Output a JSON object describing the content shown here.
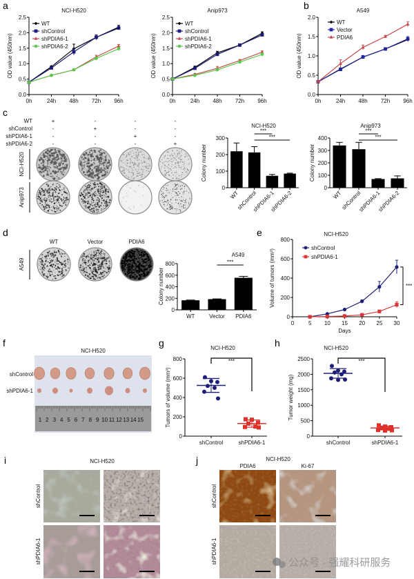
{
  "panel_labels": {
    "a": "a",
    "b": "b",
    "c": "c",
    "d": "d",
    "e": "e",
    "f": "f",
    "g": "g",
    "h": "h",
    "i": "i",
    "j": "j"
  },
  "chart_data": [
    {
      "id": "a-nci-h520",
      "type": "line",
      "title": "NCI-H520",
      "ylabel": "OD value (450nm)",
      "xlabel": "",
      "x": [
        0,
        24,
        48,
        72,
        96
      ],
      "xlim": [
        0,
        96
      ],
      "xticks": [
        0,
        24,
        48,
        72,
        96
      ],
      "xtick_labels": [
        "0h",
        "24h",
        "48h",
        "72h",
        "96h"
      ],
      "ylim": [
        0,
        2.5
      ],
      "yticks": [
        0,
        0.5,
        1,
        1.5,
        2,
        2.5
      ],
      "ytick_labels": [
        "0.0",
        "0.5",
        "1.0",
        "1.5",
        "2.0",
        "2.5"
      ],
      "legend": "top-left",
      "series": [
        {
          "name": "WT",
          "color": "#000000",
          "marker": "diamond",
          "values": [
            0.4,
            0.9,
            1.48,
            1.85,
            2.18
          ],
          "errors": [
            0.02,
            0.03,
            0.15,
            0.05,
            0.06
          ]
        },
        {
          "name": "shControl",
          "color": "#1c1c78",
          "marker": "square",
          "values": [
            0.4,
            0.86,
            1.38,
            1.85,
            2.15
          ],
          "errors": [
            0.02,
            0.03,
            0.1,
            0.08,
            0.05
          ]
        },
        {
          "name": "shPDIA6-1",
          "color": "#c0504d",
          "marker": "triangle",
          "values": [
            0.4,
            0.62,
            0.8,
            1.22,
            1.57
          ],
          "errors": [
            0.02,
            0.03,
            0.03,
            0.05,
            0.05
          ]
        },
        {
          "name": "shPDIA6-2",
          "color": "#5cc84a",
          "marker": "star",
          "values": [
            0.4,
            0.62,
            0.8,
            1.17,
            1.48
          ],
          "errors": [
            0.02,
            0.03,
            0.03,
            0.04,
            0.04
          ]
        }
      ]
    },
    {
      "id": "a-anip973",
      "type": "line",
      "title": "Anip973",
      "ylabel": "OD value (450nm)",
      "xlabel": "",
      "x": [
        0,
        24,
        48,
        72,
        96
      ],
      "xlim": [
        0,
        96
      ],
      "xticks": [
        0,
        24,
        48,
        72,
        96
      ],
      "xtick_labels": [
        "0h",
        "24h",
        "48h",
        "72h",
        "96h"
      ],
      "ylim": [
        0,
        2.5
      ],
      "yticks": [
        0,
        0.5,
        1,
        1.5,
        2,
        2.5
      ],
      "ytick_labels": [
        "0.0",
        "0.5",
        "1.0",
        "1.5",
        "2.0",
        "2.5"
      ],
      "legend": "top-left",
      "series": [
        {
          "name": "WT",
          "color": "#000000",
          "marker": "diamond",
          "values": [
            0.5,
            0.88,
            1.35,
            1.6,
            1.98
          ],
          "errors": [
            0.02,
            0.04,
            0.05,
            0.03,
            0.05
          ]
        },
        {
          "name": "shControl",
          "color": "#1c1c78",
          "marker": "square",
          "values": [
            0.5,
            0.85,
            1.3,
            1.6,
            1.93
          ],
          "errors": [
            0.02,
            0.03,
            0.04,
            0.03,
            0.04
          ]
        },
        {
          "name": "shPDIA6-1",
          "color": "#c0504d",
          "marker": "triangle",
          "values": [
            0.5,
            0.65,
            0.85,
            1.1,
            1.37
          ],
          "errors": [
            0.02,
            0.03,
            0.06,
            0.03,
            0.04
          ]
        },
        {
          "name": "shPDIA6-2",
          "color": "#5cc84a",
          "marker": "star",
          "values": [
            0.5,
            0.62,
            0.8,
            1.05,
            1.3
          ],
          "errors": [
            0.02,
            0.03,
            0.04,
            0.03,
            0.04
          ]
        }
      ]
    },
    {
      "id": "b-a549",
      "type": "line",
      "title": "A549",
      "ylabel": "OD value (450nm)",
      "xlabel": "",
      "x": [
        0,
        24,
        48,
        72,
        96
      ],
      "xlim": [
        0,
        96
      ],
      "xticks": [
        0,
        24,
        48,
        72,
        96
      ],
      "xtick_labels": [
        "0h",
        "24h",
        "48h",
        "72h",
        "96h"
      ],
      "ylim": [
        0,
        2
      ],
      "yticks": [
        0,
        0.5,
        1,
        1.5,
        2
      ],
      "ytick_labels": [
        "0.0",
        "0.5",
        "1.0",
        "1.5",
        "2.0"
      ],
      "legend": "top-left",
      "series": [
        {
          "name": "WT",
          "color": "#000000",
          "marker": "diamond",
          "values": [
            0.33,
            0.66,
            0.97,
            1.18,
            1.42
          ],
          "errors": [
            0.03,
            0.03,
            0.04,
            0.03,
            0.05
          ]
        },
        {
          "name": "Vector",
          "color": "#23239a",
          "marker": "square",
          "values": [
            0.33,
            0.65,
            0.97,
            1.18,
            1.44
          ],
          "errors": [
            0.03,
            0.03,
            0.04,
            0.03,
            0.06
          ]
        },
        {
          "name": "PDIA6",
          "color": "#c8474a",
          "marker": "triangle",
          "values": [
            0.33,
            0.8,
            1.22,
            1.5,
            1.82
          ],
          "errors": [
            0.03,
            0.1,
            0.06,
            0.03,
            0.06
          ]
        }
      ]
    },
    {
      "id": "c-nci-h520-colony",
      "type": "bar",
      "title": "NCI-H520",
      "ylabel": "Colony number",
      "xlabel": "",
      "categories": [
        "WT",
        "shControl",
        "shPDIA6-1",
        "shPDIA6-2"
      ],
      "values": [
        220,
        213,
        72,
        85
      ],
      "errors": [
        50,
        35,
        8,
        3
      ],
      "ylim": [
        0,
        300
      ],
      "yticks": [
        0,
        100,
        200,
        300
      ],
      "ytick_labels": [
        "0",
        "100",
        "200",
        "300"
      ],
      "comparisons": [
        {
          "from": 1,
          "to": 2,
          "label": "***"
        },
        {
          "from": 1,
          "to": 3,
          "label": "***"
        }
      ]
    },
    {
      "id": "c-anip973-colony",
      "type": "bar",
      "title": "Anip973",
      "ylabel": "Colony number",
      "xlabel": "",
      "categories": [
        "WT",
        "shControl",
        "shPDIA6-1",
        "shPDIA6-2"
      ],
      "values": [
        340,
        310,
        70,
        75
      ],
      "errors": [
        25,
        55,
        3,
        20
      ],
      "ylim": [
        0,
        400
      ],
      "yticks": [
        0,
        100,
        200,
        300,
        400
      ],
      "ytick_labels": [
        "0",
        "100",
        "200",
        "300",
        "400"
      ],
      "comparisons": [
        {
          "from": 1,
          "to": 2,
          "label": "***"
        },
        {
          "from": 1,
          "to": 3,
          "label": "***"
        }
      ]
    },
    {
      "id": "d-a549-colony",
      "type": "bar",
      "title": "A549",
      "ylabel": "Colony number",
      "xlabel": "",
      "categories": [
        "WT",
        "Vector",
        "PDIA6"
      ],
      "values": [
        165,
        185,
        555
      ],
      "errors": [
        5,
        5,
        25
      ],
      "ylim": [
        0,
        800
      ],
      "yticks": [
        0,
        200,
        400,
        600,
        800
      ],
      "ytick_labels": [
        "0",
        "200",
        "400",
        "600",
        "800"
      ],
      "comparisons": [
        {
          "from": 1,
          "to": 2,
          "label": "***"
        }
      ]
    },
    {
      "id": "e-tumor-volume",
      "type": "line",
      "title": "NCI-H520",
      "ylabel": "Volume of tumors (mm³)",
      "xlabel": "Days",
      "x": [
        5,
        10,
        15,
        20,
        25,
        30
      ],
      "xlim": [
        0,
        30
      ],
      "xticks": [
        0,
        5,
        10,
        15,
        20,
        25,
        30
      ],
      "xtick_labels": [
        "0",
        "5",
        "10",
        "15",
        "20",
        "25",
        "30"
      ],
      "ylim": [
        0,
        800
      ],
      "yticks": [
        0,
        200,
        400,
        600,
        800
      ],
      "ytick_labels": [
        "0",
        "200",
        "400",
        "600",
        "800"
      ],
      "legend": "top-left",
      "series": [
        {
          "name": "shControl",
          "color": "#1e1e78",
          "marker": "circle",
          "values": [
            0,
            30,
            75,
            160,
            310,
            515
          ],
          "errors": [
            2,
            6,
            8,
            15,
            55,
            70
          ]
        },
        {
          "name": "shPDIA6-1",
          "color": "#d9383a",
          "marker": "square",
          "values": [
            0,
            3,
            8,
            20,
            55,
            125
          ],
          "errors": [
            1,
            2,
            3,
            5,
            10,
            30
          ]
        }
      ],
      "comparisons": [
        {
          "label": "***"
        }
      ]
    },
    {
      "id": "g-tumor-volume-scatter",
      "type": "scatter",
      "title": "NCI-H520",
      "ylabel": "Tumors of volume (mm³)",
      "xlabel": "",
      "ylim": [
        0,
        800
      ],
      "yticks": [
        0,
        200,
        400,
        600,
        800
      ],
      "ytick_labels": [
        "0",
        "200",
        "400",
        "600",
        "800"
      ],
      "groups": [
        {
          "name": "shControl",
          "color": "#1e1e78",
          "marker": "circle",
          "points": [
            610,
            570,
            560,
            520,
            500,
            460,
            390
          ],
          "mean": 525,
          "sd": 72
        },
        {
          "name": "shPDIA6-1",
          "color": "#e0302c",
          "marker": "square",
          "points": [
            175,
            170,
            140,
            130,
            100,
            95,
            90
          ],
          "mean": 130,
          "sd": 38
        }
      ],
      "comparisons": [
        {
          "from": 0,
          "to": 1,
          "label": "***"
        }
      ]
    },
    {
      "id": "h-tumor-weight-scatter",
      "type": "scatter",
      "title": "NCI-H520",
      "ylabel": "Tumor weight (mg)",
      "xlabel": "",
      "ylim": [
        0,
        2500
      ],
      "yticks": [
        0,
        500,
        1000,
        1500,
        2000,
        2500
      ],
      "ytick_labels": [
        "0",
        "500",
        "1000",
        "1500",
        "2000",
        "2500"
      ],
      "groups": [
        {
          "name": "shControl",
          "color": "#1e1e78",
          "marker": "circle",
          "points": [
            2270,
            2120,
            2090,
            2060,
            2000,
            1870,
            1830,
            1820
          ],
          "mean": 2030,
          "sd": 155
        },
        {
          "name": "shPDIA6-1",
          "color": "#e0302c",
          "marker": "square",
          "points": [
            350,
            310,
            290,
            260,
            240,
            200,
            190,
            180
          ],
          "mean": 265,
          "sd": 60
        }
      ],
      "comparisons": [
        {
          "from": 0,
          "to": 1,
          "label": "***"
        }
      ]
    }
  ],
  "panel_c": {
    "conditions": [
      "WT",
      "shControl",
      "shPDIA6-1",
      "shPDIA6-2"
    ],
    "signs": [
      [
        "+",
        "-",
        "-",
        "-"
      ],
      [
        "-",
        "+",
        "-",
        "-"
      ],
      [
        "-",
        "-",
        "+",
        "-"
      ],
      [
        "-",
        "-",
        "-",
        "+"
      ]
    ],
    "cell_lines": [
      "NCI-H520",
      "Anip973"
    ]
  },
  "panel_d": {
    "columns": [
      "WT",
      "Vector",
      "PDIA6"
    ],
    "cell_line": "A549"
  },
  "panel_f": {
    "title": "NCI-H520",
    "rows": [
      "shControl",
      "shPDIA6-1"
    ],
    "ruler_numbers": [
      "1",
      "2",
      "3",
      "4",
      "5",
      "6",
      "7",
      "8",
      "9",
      "10",
      "11",
      "12",
      "13",
      "14",
      "15"
    ]
  },
  "panel_i": {
    "title": "NCI-H520",
    "rows": [
      "shControl",
      "shPDIA6-1"
    ]
  },
  "panel_j": {
    "title": "NCI-H520",
    "columns": [
      "PDIA6",
      "Ki-67"
    ],
    "rows": [
      "shControl",
      "shPDIA6-1"
    ]
  },
  "watermark": {
    "text": "公众号 · 强耀科研服务"
  }
}
